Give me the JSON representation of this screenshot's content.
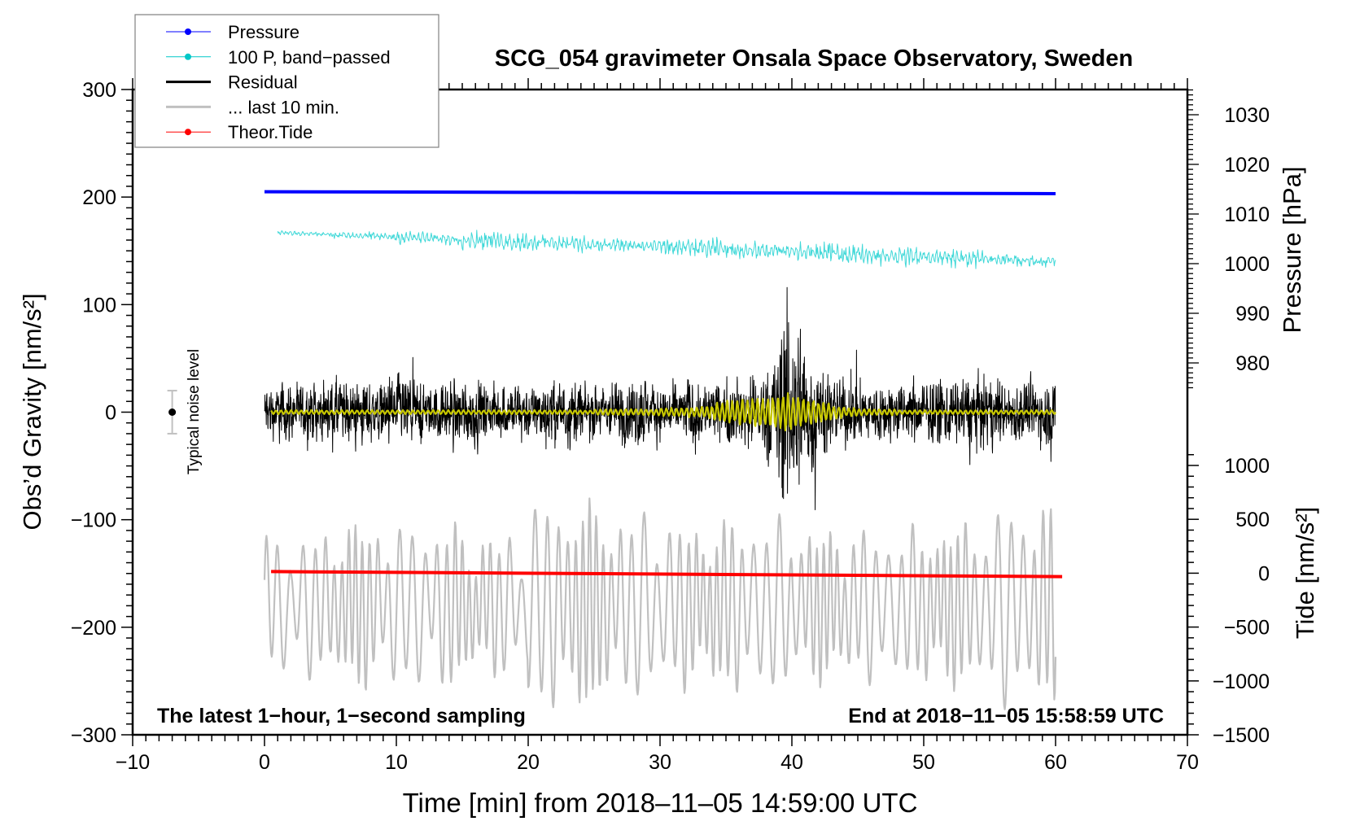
{
  "chart_data": {
    "type": "line",
    "title": "SCG_054 gravimeter Onsala Space Observatory, Sweden",
    "xlabel": "Time [min] from 2018‒11‒05 14:59:00 UTC",
    "ylabel": "Obs’d Gravity [nm/s²]",
    "y2label": "Pressure [hPa]",
    "y3label": "Tide [nm/s²]",
    "xlim": [
      -10,
      70
    ],
    "ylim": [
      -300,
      300
    ],
    "pressure_lim": [
      975,
      1035
    ],
    "tide_lim": [
      -1500,
      1100
    ],
    "x_ticks": [
      "−10",
      "0",
      "10",
      "20",
      "30",
      "40",
      "50",
      "60",
      "70"
    ],
    "x_tick_values": [
      -10,
      0,
      10,
      20,
      30,
      40,
      50,
      60,
      70
    ],
    "y_ticks": [
      "300",
      "200",
      "100",
      "0",
      "−100",
      "−200",
      "−300"
    ],
    "y_tick_values": [
      300,
      200,
      100,
      0,
      -100,
      -200,
      -300
    ],
    "pressure_ticks": [
      "1030",
      "1020",
      "1010",
      "1000",
      "990",
      "980"
    ],
    "pressure_tick_values": [
      1030,
      1020,
      1010,
      1000,
      990,
      980
    ],
    "tide_ticks": [
      "1000",
      "500",
      "0",
      "−500",
      "−1000",
      "−1500"
    ],
    "tide_tick_values": [
      1000,
      500,
      0,
      -500,
      -1000,
      -1500
    ],
    "legend": {
      "placement": "top-left",
      "entries": [
        {
          "label": "Pressure",
          "color": "#0000ff",
          "marker": true
        },
        {
          "label": "100 P, band−passed",
          "color": "#00c8c8",
          "marker": true
        },
        {
          "label": "Residual",
          "color": "#000000",
          "marker": false
        },
        {
          "label": "... last 10 min.",
          "color": "#c0c0c0",
          "marker": false
        },
        {
          "label": "Theor.Tide",
          "color": "#ff0000",
          "marker": true
        }
      ]
    },
    "annotations": {
      "bottom_left": "The latest 1−hour, 1−second sampling",
      "bottom_right": "End at 2018−11−05 15:58:59 UTC",
      "noise_label": "Typical noise level"
    },
    "noise_bar": {
      "x": -7,
      "center": 0,
      "half_range": 20
    },
    "series": {
      "pressure": {
        "name": "Pressure",
        "unit": "hPa",
        "x_range": [
          0,
          60
        ],
        "start": 1014.5,
        "end": 1014.1,
        "color": "#0000ff"
      },
      "bandpassed": {
        "name": "100 P, band-passed",
        "x_range": [
          1,
          60
        ],
        "trend_start": 167,
        "trend_end": 140,
        "envelope_per_5min": [
          2,
          3,
          5,
          8,
          7,
          6,
          8,
          7,
          9,
          8,
          7,
          5
        ],
        "color": "#40d8d8"
      },
      "residual": {
        "name": "Residual",
        "x_range": [
          0,
          60
        ],
        "color": "#000000",
        "envelope_per_min": [
          30,
          35,
          30,
          35,
          32,
          38,
          35,
          40,
          35,
          38,
          40,
          35,
          30,
          35,
          40,
          38,
          35,
          30,
          32,
          35,
          30,
          40,
          35,
          40,
          30,
          30,
          35,
          40,
          45,
          30,
          32,
          35,
          38,
          35,
          35,
          38,
          40,
          45,
          60,
          130,
          110,
          70,
          50,
          40,
          38,
          35,
          35,
          38,
          35,
          38,
          35,
          40,
          38,
          50,
          40,
          38,
          35,
          38,
          35,
          40
        ]
      },
      "residual_filtered": {
        "x_range": [
          0.5,
          60
        ],
        "color": "#c8c800",
        "envelope_per_min": [
          2,
          2,
          2,
          2,
          2,
          2,
          2,
          2,
          2,
          2,
          2,
          2,
          2,
          2,
          2,
          2,
          2,
          2,
          2,
          2,
          2,
          2,
          2,
          2,
          2,
          3,
          3,
          3,
          3,
          3,
          4,
          4,
          5,
          6,
          9,
          11,
          12,
          14,
          15,
          18,
          14,
          12,
          10,
          6,
          4,
          3,
          3,
          3,
          2,
          2,
          2,
          2,
          2,
          2,
          2,
          2,
          2,
          2,
          2,
          2
        ]
      },
      "last10": {
        "name": "... last 10 min.",
        "x_range": [
          0,
          60
        ],
        "offset": -150,
        "color": "#c0c0c0",
        "envelope_per_5min": [
          60,
          70,
          70,
          60,
          90,
          80,
          70,
          75,
          65,
          65,
          70,
          85
        ]
      },
      "tide": {
        "name": "Theor.Tide",
        "unit": "nm/s²",
        "x_range": [
          0.5,
          60.5
        ],
        "start": 15,
        "end": -32,
        "color": "#ff0000"
      }
    }
  }
}
